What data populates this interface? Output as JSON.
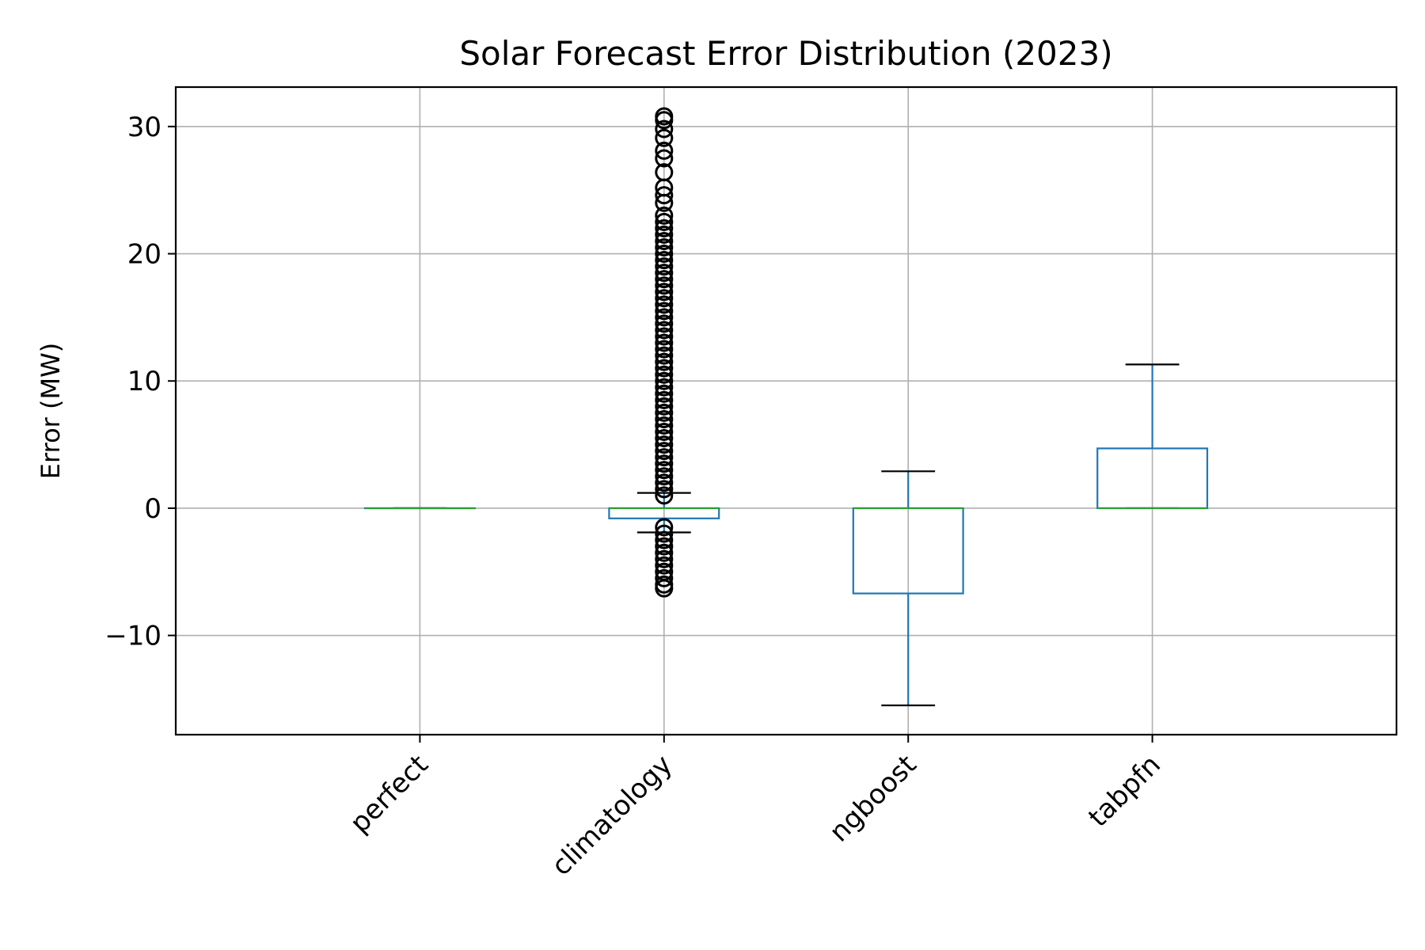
{
  "chart_data": {
    "type": "box",
    "title": "Solar Forecast Error Distribution (2023)",
    "xlabel": "",
    "ylabel": "Error (MW)",
    "ylim": [
      -17.8,
      33.1
    ],
    "yticks": [
      -10,
      0,
      10,
      20,
      30
    ],
    "ytick_labels": [
      "−10",
      "0",
      "10",
      "20",
      "30"
    ],
    "grid": true,
    "categories": [
      "perfect",
      "climatology",
      "ngboost",
      "tabpfn"
    ],
    "boxes": [
      {
        "label": "perfect",
        "whisker_low": 0,
        "q1": 0,
        "median": 0,
        "q3": 0,
        "whisker_high": 0,
        "fliers": []
      },
      {
        "label": "climatology",
        "whisker_low": -1.9,
        "q1": -0.8,
        "median": 0,
        "q3": 0,
        "whisker_high": 1.2,
        "fliers": [
          1.0,
          1.5,
          2.0,
          2.5,
          3.0,
          3.5,
          4.0,
          4.5,
          5.0,
          5.5,
          6.0,
          6.5,
          7.0,
          7.5,
          8.0,
          8.5,
          9.0,
          9.5,
          10.0,
          10.5,
          11.0,
          11.5,
          12.0,
          12.5,
          13.0,
          13.5,
          14.0,
          14.5,
          15.0,
          15.5,
          16.0,
          16.5,
          17.0,
          17.5,
          18.0,
          18.5,
          19.0,
          19.5,
          20.0,
          20.5,
          21.0,
          21.5,
          22.0,
          22.5,
          23.0,
          24.0,
          24.6,
          25.2,
          26.4,
          27.5,
          28.1,
          29.1,
          29.8,
          30.5,
          30.8,
          -1.5,
          -2.0,
          -2.5,
          -3.0,
          -3.5,
          -4.0,
          -4.5,
          -5.0,
          -5.5,
          -6.0,
          -6.3
        ]
      },
      {
        "label": "ngboost",
        "whisker_low": -15.5,
        "q1": -6.7,
        "median": 0,
        "q3": 0,
        "whisker_high": 2.9,
        "fliers": []
      },
      {
        "label": "tabpfn",
        "whisker_low": 0,
        "q1": 0,
        "median": 0,
        "q3": 4.7,
        "whisker_high": 11.3,
        "fliers": []
      }
    ],
    "colors": {
      "box": "#1f77b4",
      "median": "#2ca02c",
      "cap": "#000000",
      "flier": "#000000",
      "grid": "#b0b0b0"
    }
  }
}
